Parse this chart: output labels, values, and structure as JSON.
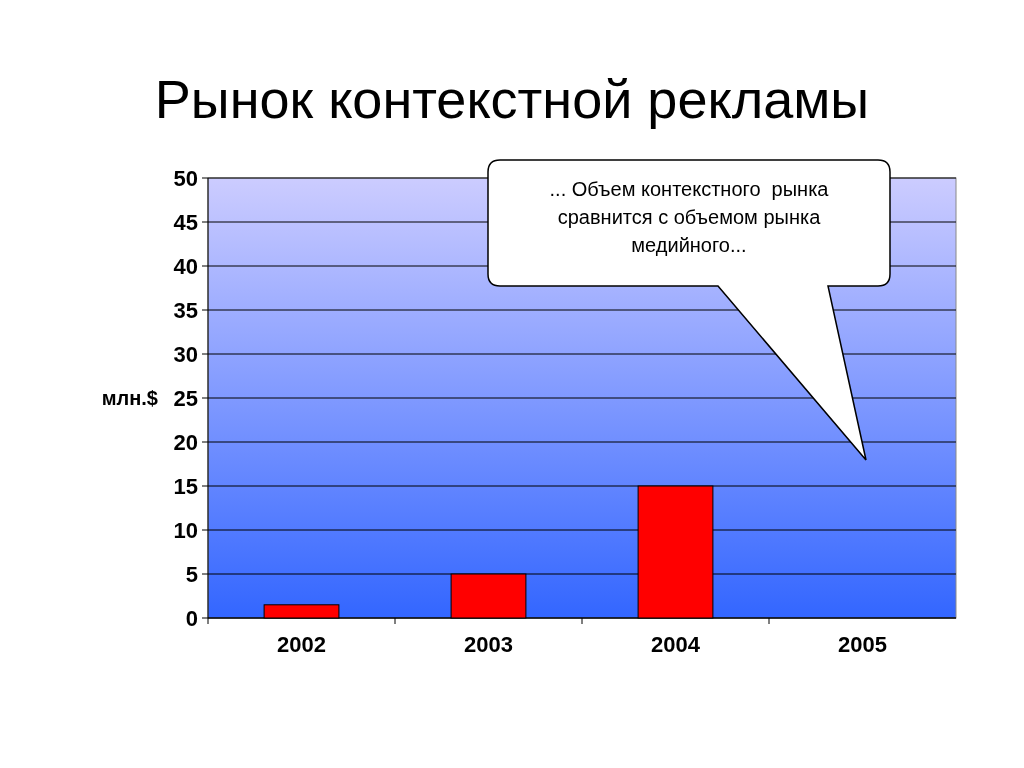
{
  "chart_data": {
    "type": "bar",
    "title": "Рынок контекстной рекламы",
    "ylabel": "млн.$",
    "categories": [
      "2002",
      "2003",
      "2004",
      "2005"
    ],
    "values": [
      1.5,
      5,
      15,
      null
    ],
    "color": "#ff0000",
    "ylim": [
      0,
      50
    ],
    "yticks": [
      0,
      5,
      10,
      15,
      20,
      25,
      30,
      35,
      40,
      45,
      50
    ],
    "grid": "y",
    "annotations": [
      "... Объем контекстного  рынка\nсравнится с объемом рынка\nмедийного..."
    ]
  }
}
